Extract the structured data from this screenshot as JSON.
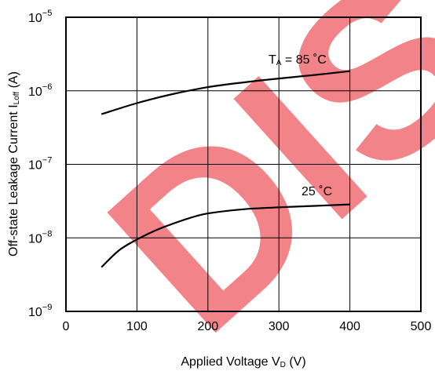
{
  "chart_data": {
    "type": "line",
    "xlabel": "Applied Voltage  V",
    "xlabel_sub": "D",
    "xlabel_unit": " (V)",
    "ylabel": "Off-state Leakage Current  I",
    "ylabel_sub": "Loff",
    "ylabel_unit": " (A)",
    "x_ticks": [
      "0",
      "100",
      "200",
      "300",
      "400",
      "500"
    ],
    "y_ticks": [
      {
        "base": "10",
        "exp": "−5"
      },
      {
        "base": "10",
        "exp": "−6"
      },
      {
        "base": "10",
        "exp": "−7"
      },
      {
        "base": "10",
        "exp": "−8"
      },
      {
        "base": "10",
        "exp": "−9"
      }
    ],
    "xlim": [
      0,
      500
    ],
    "ylim": [
      1e-09,
      1e-05
    ],
    "y_scale": "log",
    "grid": true,
    "series": [
      {
        "name": "TA = 85 °C",
        "label_main": "T",
        "label_sub": "A",
        "label_rest": " = 85 ˚C",
        "x": [
          50,
          100,
          150,
          200,
          250,
          300,
          350,
          400
        ],
        "y": [
          4.8e-07,
          6.8e-07,
          9e-07,
          1.12e-06,
          1.3e-06,
          1.47e-06,
          1.64e-06,
          1.85e-06
        ]
      },
      {
        "name": "25 °C",
        "label_main": "25 ˚C",
        "label_sub": "",
        "label_rest": "",
        "x": [
          50,
          75,
          100,
          125,
          150,
          175,
          200,
          250,
          300,
          350,
          400
        ],
        "y": [
          4e-09,
          6.8e-09,
          9.5e-09,
          1.25e-08,
          1.55e-08,
          1.87e-08,
          2.15e-08,
          2.45e-08,
          2.6e-08,
          2.72e-08,
          2.85e-08
        ]
      }
    ]
  },
  "watermark": {
    "text": "DISC",
    "color": "#e8202a"
  }
}
